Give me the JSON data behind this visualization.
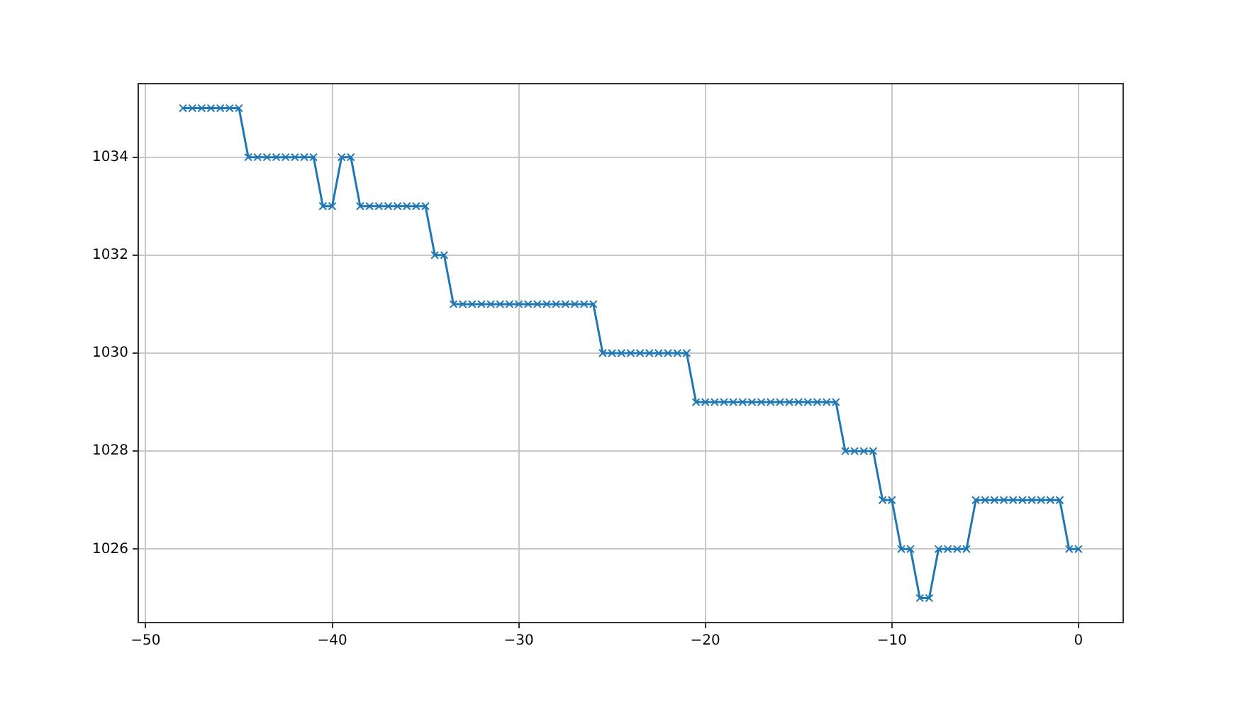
{
  "chart_data": {
    "type": "line",
    "marker": "cross",
    "grid": true,
    "legend": false,
    "x": [
      -48,
      -47.5,
      -47,
      -46.5,
      -46,
      -45.5,
      -45,
      -44.5,
      -44,
      -43.5,
      -43,
      -42.5,
      -42,
      -41.5,
      -41,
      -40.5,
      -40,
      -39.5,
      -39,
      -38.5,
      -38,
      -37.5,
      -37,
      -36.5,
      -36,
      -35.5,
      -35,
      -34.5,
      -34,
      -33.5,
      -33,
      -32.5,
      -32,
      -31.5,
      -31,
      -30.5,
      -30,
      -29.5,
      -29,
      -28.5,
      -28,
      -27.5,
      -27,
      -26.5,
      -26,
      -25.5,
      -25,
      -24.5,
      -24,
      -23.5,
      -23,
      -22.5,
      -22,
      -21.5,
      -21,
      -20.5,
      -20,
      -19.5,
      -19,
      -18.5,
      -18,
      -17.5,
      -17,
      -16.5,
      -16,
      -15.5,
      -15,
      -14.5,
      -14,
      -13.5,
      -13,
      -12.5,
      -12,
      -11.5,
      -11,
      -10.5,
      -10,
      -9.5,
      -9,
      -8.5,
      -8,
      -7.5,
      -7,
      -6.5,
      -6,
      -5.5,
      -5,
      -4.5,
      -4,
      -3.5,
      -3,
      -2.5,
      -2,
      -1.5,
      -1,
      -0.5,
      0
    ],
    "series": [
      {
        "color": "#1f77b4",
        "values": [
          1035,
          1035,
          1035,
          1035,
          1035,
          1035,
          1035,
          1034,
          1034,
          1034,
          1034,
          1034,
          1034,
          1034,
          1034,
          1033,
          1033,
          1034,
          1034,
          1033,
          1033,
          1033,
          1033,
          1033,
          1033,
          1033,
          1033,
          1032,
          1032,
          1031,
          1031,
          1031,
          1031,
          1031,
          1031,
          1031,
          1031,
          1031,
          1031,
          1031,
          1031,
          1031,
          1031,
          1031,
          1031,
          1030,
          1030,
          1030,
          1030,
          1030,
          1030,
          1030,
          1030,
          1030,
          1030,
          1029,
          1029,
          1029,
          1029,
          1029,
          1029,
          1029,
          1029,
          1029,
          1029,
          1029,
          1029,
          1029,
          1029,
          1029,
          1029,
          1028,
          1028,
          1028,
          1028,
          1027,
          1027,
          1026,
          1026,
          1025,
          1025,
          1026,
          1026,
          1026,
          1026,
          1027,
          1027,
          1027,
          1027,
          1027,
          1027,
          1027,
          1027,
          1027,
          1027,
          1026,
          1026
        ]
      }
    ],
    "xlim": [
      -50.4,
      2.4
    ],
    "ylim": [
      1024.5,
      1035.5
    ],
    "xticks": [
      -50,
      -40,
      -30,
      -20,
      -10,
      0
    ],
    "yticks": [
      1026,
      1028,
      1030,
      1032,
      1034
    ]
  }
}
